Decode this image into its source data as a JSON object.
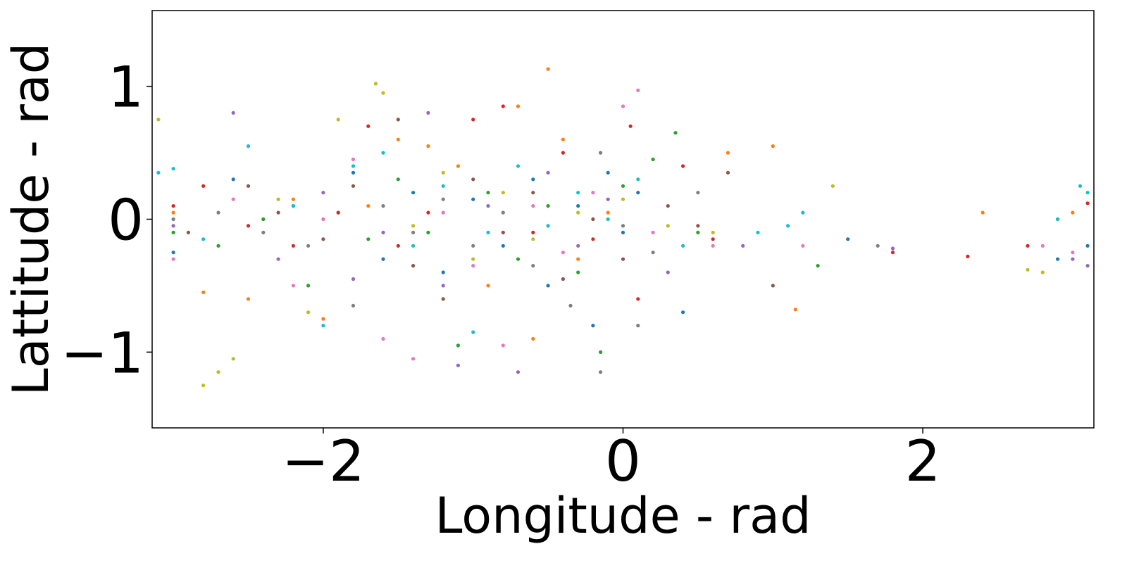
{
  "chart_data": {
    "type": "scatter",
    "title": "",
    "xlabel": "Longitude - rad",
    "ylabel": "Lattitude - rad",
    "xlim": [
      -3.1416,
      3.1416
    ],
    "ylim": [
      -1.57,
      1.57
    ],
    "xticks": [
      {
        "value": -2,
        "label": "−2"
      },
      {
        "value": 0,
        "label": "0"
      },
      {
        "value": 2,
        "label": "2"
      }
    ],
    "yticks": [
      {
        "value": -1,
        "label": "−1"
      },
      {
        "value": 0,
        "label": "0"
      },
      {
        "value": 1,
        "label": "1"
      }
    ],
    "grid": false,
    "legend": "none",
    "colors": [
      "#1f77b4",
      "#ff7f0e",
      "#2ca02c",
      "#d62728",
      "#9467bd",
      "#8c564b",
      "#e377c2",
      "#7f7f7f",
      "#bcbd22",
      "#17becf"
    ],
    "series": [
      {
        "color": "#1f77b4",
        "points": [
          [
            -3.0,
            -0.25
          ],
          [
            -2.6,
            0.3
          ],
          [
            -2.2,
            0.1
          ],
          [
            -1.8,
            0.35
          ],
          [
            -1.6,
            -0.3
          ],
          [
            -1.4,
            0.2
          ],
          [
            -1.2,
            -0.4
          ],
          [
            -1.0,
            0.15
          ],
          [
            -0.8,
            -0.2
          ],
          [
            -0.6,
            0.3
          ],
          [
            -0.5,
            -0.5
          ],
          [
            -0.3,
            0.1
          ],
          [
            -0.2,
            -0.8
          ],
          [
            -0.1,
            0.35
          ],
          [
            0.0,
            -0.1
          ],
          [
            0.1,
            0.2
          ],
          [
            0.4,
            -0.7
          ],
          [
            1.5,
            -0.15
          ],
          [
            2.9,
            -0.3
          ],
          [
            3.1,
            -0.2
          ]
        ]
      },
      {
        "color": "#ff7f0e",
        "points": [
          [
            -3.0,
            0.05
          ],
          [
            -2.8,
            -0.55
          ],
          [
            -2.5,
            -0.6
          ],
          [
            -2.2,
            0.15
          ],
          [
            -2.0,
            -0.75
          ],
          [
            -1.7,
            0.1
          ],
          [
            -1.5,
            0.6
          ],
          [
            -1.3,
            0.55
          ],
          [
            -1.1,
            0.4
          ],
          [
            -0.9,
            -0.5
          ],
          [
            -0.7,
            0.85
          ],
          [
            -0.6,
            -0.9
          ],
          [
            -0.5,
            1.13
          ],
          [
            -0.4,
            0.6
          ],
          [
            -0.3,
            -0.3
          ],
          [
            -0.1,
            0.05
          ],
          [
            0.7,
            0.5
          ],
          [
            1.0,
            0.55
          ],
          [
            1.15,
            -0.68
          ],
          [
            2.4,
            0.05
          ],
          [
            3.0,
            0.05
          ]
        ]
      },
      {
        "color": "#2ca02c",
        "points": [
          [
            -3.0,
            -0.1
          ],
          [
            -2.7,
            -0.2
          ],
          [
            -2.4,
            0.0
          ],
          [
            -2.1,
            -0.5
          ],
          [
            -1.9,
            0.05
          ],
          [
            -1.7,
            -0.15
          ],
          [
            -1.5,
            0.3
          ],
          [
            -1.3,
            -0.1
          ],
          [
            -1.1,
            -0.95
          ],
          [
            -0.9,
            0.2
          ],
          [
            -0.7,
            -0.3
          ],
          [
            -0.5,
            0.1
          ],
          [
            -0.3,
            -0.4
          ],
          [
            -0.15,
            -1.0
          ],
          [
            0.0,
            0.25
          ],
          [
            0.2,
            0.45
          ],
          [
            0.35,
            0.65
          ],
          [
            0.5,
            -0.1
          ],
          [
            1.3,
            -0.35
          ]
        ]
      },
      {
        "color": "#d62728",
        "points": [
          [
            -3.0,
            0.1
          ],
          [
            -2.8,
            0.25
          ],
          [
            -2.5,
            -0.05
          ],
          [
            -2.2,
            -0.2
          ],
          [
            -1.9,
            0.05
          ],
          [
            -1.7,
            0.7
          ],
          [
            -1.5,
            -0.2
          ],
          [
            -1.3,
            0.05
          ],
          [
            -1.0,
            0.75
          ],
          [
            -0.8,
            0.85
          ],
          [
            -0.6,
            -0.1
          ],
          [
            -0.4,
            0.5
          ],
          [
            -0.2,
            -0.15
          ],
          [
            0.05,
            0.7
          ],
          [
            0.1,
            -0.6
          ],
          [
            0.4,
            0.4
          ],
          [
            0.6,
            -0.15
          ],
          [
            1.8,
            -0.25
          ],
          [
            2.3,
            -0.28
          ],
          [
            2.7,
            -0.2
          ],
          [
            3.1,
            0.12
          ]
        ]
      },
      {
        "color": "#9467bd",
        "points": [
          [
            -3.0,
            -0.05
          ],
          [
            -2.6,
            0.8
          ],
          [
            -2.3,
            -0.3
          ],
          [
            -2.0,
            0.2
          ],
          [
            -1.8,
            -0.45
          ],
          [
            -1.6,
            -0.1
          ],
          [
            -1.3,
            0.8
          ],
          [
            -1.2,
            -0.5
          ],
          [
            -1.1,
            -1.1
          ],
          [
            -0.9,
            0.1
          ],
          [
            -0.7,
            -1.15
          ],
          [
            -0.5,
            0.35
          ],
          [
            -0.3,
            -0.2
          ],
          [
            -0.1,
            0.15
          ],
          [
            0.3,
            -0.4
          ],
          [
            0.8,
            -0.2
          ],
          [
            1.8,
            -0.22
          ],
          [
            3.0,
            -0.3
          ],
          [
            3.1,
            -0.35
          ]
        ]
      },
      {
        "color": "#8c564b",
        "points": [
          [
            -2.9,
            -0.1
          ],
          [
            -2.5,
            0.25
          ],
          [
            -2.3,
            0.05
          ],
          [
            -2.0,
            -0.15
          ],
          [
            -1.8,
            0.25
          ],
          [
            -1.5,
            0.75
          ],
          [
            -1.4,
            -0.35
          ],
          [
            -1.2,
            -0.6
          ],
          [
            -1.0,
            0.3
          ],
          [
            -0.8,
            -0.1
          ],
          [
            -0.6,
            0.2
          ],
          [
            -0.4,
            -0.45
          ],
          [
            -0.2,
            0.0
          ],
          [
            0.0,
            -0.3
          ],
          [
            0.3,
            0.1
          ],
          [
            0.5,
            -0.05
          ],
          [
            0.7,
            0.35
          ],
          [
            1.0,
            -0.5
          ],
          [
            2.9,
            0.0
          ]
        ]
      },
      {
        "color": "#e377c2",
        "points": [
          [
            -3.0,
            -0.3
          ],
          [
            -2.6,
            0.15
          ],
          [
            -2.2,
            -0.5
          ],
          [
            -2.0,
            0.0
          ],
          [
            -1.8,
            0.45
          ],
          [
            -1.6,
            -0.9
          ],
          [
            -1.4,
            -1.05
          ],
          [
            -1.2,
            0.05
          ],
          [
            -1.0,
            -0.35
          ],
          [
            -0.8,
            -0.95
          ],
          [
            -0.6,
            0.1
          ],
          [
            -0.4,
            -0.25
          ],
          [
            -0.2,
            0.2
          ],
          [
            0.0,
            0.85
          ],
          [
            0.1,
            0.97
          ],
          [
            0.2,
            -0.1
          ],
          [
            0.6,
            -0.2
          ],
          [
            1.2,
            -0.2
          ],
          [
            2.8,
            -0.2
          ],
          [
            3.0,
            -0.25
          ]
        ]
      },
      {
        "color": "#7f7f7f",
        "points": [
          [
            -3.0,
            0.0
          ],
          [
            -2.7,
            0.05
          ],
          [
            -2.4,
            -0.1
          ],
          [
            -2.1,
            -0.2
          ],
          [
            -1.8,
            -0.65
          ],
          [
            -1.6,
            0.1
          ],
          [
            -1.4,
            -0.1
          ],
          [
            -1.2,
            0.15
          ],
          [
            -1.0,
            -0.2
          ],
          [
            -0.8,
            0.05
          ],
          [
            -0.6,
            -0.35
          ],
          [
            -0.35,
            -0.65
          ],
          [
            -0.15,
            0.5
          ],
          [
            -0.15,
            -1.15
          ],
          [
            0.0,
            -0.05
          ],
          [
            0.1,
            -0.8
          ],
          [
            0.2,
            -0.25
          ],
          [
            0.5,
            0.2
          ],
          [
            1.7,
            -0.2
          ]
        ]
      },
      {
        "color": "#bcbd22",
        "points": [
          [
            -3.1,
            0.75
          ],
          [
            -2.8,
            -1.25
          ],
          [
            -2.7,
            -1.15
          ],
          [
            -2.6,
            -1.05
          ],
          [
            -2.3,
            0.15
          ],
          [
            -2.1,
            -0.7
          ],
          [
            -1.9,
            0.75
          ],
          [
            -1.65,
            1.02
          ],
          [
            -1.6,
            0.95
          ],
          [
            -1.4,
            -0.05
          ],
          [
            -1.2,
            0.35
          ],
          [
            -1.0,
            -0.3
          ],
          [
            -0.8,
            0.2
          ],
          [
            -0.6,
            -0.15
          ],
          [
            -0.3,
            0.05
          ],
          [
            0.0,
            0.15
          ],
          [
            0.3,
            -0.05
          ],
          [
            0.6,
            -0.1
          ],
          [
            1.4,
            0.25
          ],
          [
            2.7,
            -0.38
          ],
          [
            2.8,
            -0.4
          ]
        ]
      },
      {
        "color": "#17becf",
        "points": [
          [
            -3.1,
            0.35
          ],
          [
            -3.0,
            0.38
          ],
          [
            -2.8,
            -0.15
          ],
          [
            -2.5,
            0.55
          ],
          [
            -2.2,
            0.1
          ],
          [
            -2.0,
            -0.8
          ],
          [
            -1.8,
            0.4
          ],
          [
            -1.6,
            0.5
          ],
          [
            -1.4,
            -0.2
          ],
          [
            -1.2,
            0.25
          ],
          [
            -1.0,
            -0.85
          ],
          [
            -0.9,
            -0.1
          ],
          [
            -0.7,
            0.4
          ],
          [
            -0.5,
            -0.05
          ],
          [
            -0.3,
            0.2
          ],
          [
            -0.1,
            0.0
          ],
          [
            0.1,
            0.3
          ],
          [
            0.4,
            -0.2
          ],
          [
            0.9,
            -0.1
          ],
          [
            1.1,
            -0.05
          ],
          [
            1.2,
            0.05
          ],
          [
            2.9,
            0.0
          ],
          [
            3.05,
            0.25
          ],
          [
            3.1,
            0.2
          ]
        ]
      }
    ]
  }
}
